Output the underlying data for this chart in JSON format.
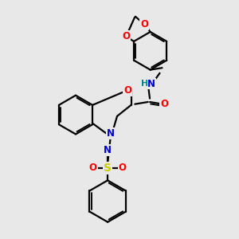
{
  "bg_color": "#e8e8e8",
  "bond_color": "#000000",
  "bond_width": 1.6,
  "atom_colors": {
    "O": "#ff0000",
    "N": "#0000cc",
    "S": "#cccc00",
    "H": "#008888",
    "C": "#000000"
  },
  "font_size": 8.5
}
